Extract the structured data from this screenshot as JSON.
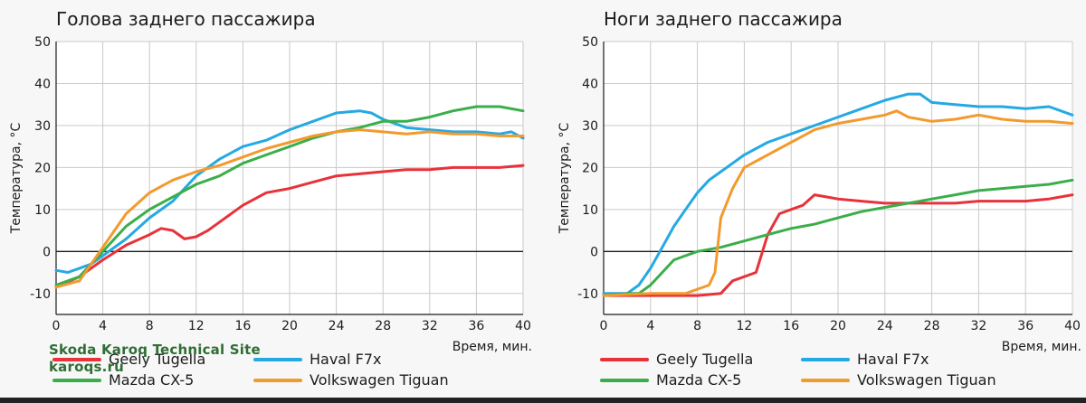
{
  "watermark": {
    "line1": "Skoda Karoq Technical Site",
    "line2": "karoqs.ru"
  },
  "chart_data": [
    {
      "type": "line",
      "title": "Голова заднего пассажира",
      "xlabel": "Время, мин.",
      "ylabel": "Температура, °C",
      "xlim": [
        0,
        40
      ],
      "ylim": [
        -15,
        50
      ],
      "xticks": [
        0,
        4,
        8,
        12,
        16,
        20,
        24,
        28,
        32,
        36,
        40
      ],
      "yticks": [
        -10,
        0,
        10,
        20,
        30,
        40,
        50
      ],
      "grid": true,
      "legend_position": "bottom",
      "series": [
        {
          "name": "Geely Tugella",
          "color": "#e8323a",
          "x": [
            0,
            2,
            4,
            6,
            8,
            9,
            10,
            11,
            12,
            13,
            14,
            16,
            18,
            20,
            22,
            24,
            26,
            28,
            30,
            32,
            34,
            36,
            38,
            40
          ],
          "y": [
            -8.5,
            -6,
            -2,
            1.5,
            4,
            5.5,
            5,
            3,
            3.5,
            5,
            7,
            11,
            14,
            15,
            16.5,
            18,
            18.5,
            19,
            19.5,
            19.5,
            20,
            20,
            20,
            20.5
          ]
        },
        {
          "name": "Haval F7x",
          "color": "#25a9e3",
          "x": [
            0,
            1,
            2,
            3,
            4,
            6,
            8,
            10,
            12,
            14,
            16,
            18,
            20,
            22,
            24,
            26,
            27,
            28,
            30,
            32,
            34,
            36,
            38,
            39,
            40
          ],
          "y": [
            -4.5,
            -5,
            -4,
            -3,
            -1,
            3,
            8,
            12,
            18,
            22,
            25,
            26.5,
            29,
            31,
            33,
            33.5,
            33,
            31.5,
            29.5,
            29,
            28.5,
            28.5,
            28,
            28.5,
            27
          ]
        },
        {
          "name": "Mazda CX-5",
          "color": "#3aae4a",
          "x": [
            0,
            2,
            4,
            6,
            8,
            10,
            12,
            14,
            16,
            18,
            20,
            22,
            24,
            26,
            28,
            30,
            32,
            34,
            36,
            38,
            40
          ],
          "y": [
            -8,
            -6,
            0,
            6,
            10,
            13,
            16,
            18,
            21,
            23,
            25,
            27,
            28.5,
            29.5,
            31,
            31,
            32,
            33.5,
            34.5,
            34.5,
            33.5
          ]
        },
        {
          "name": "Volkswagen Tiguan",
          "color": "#f29a2e",
          "x": [
            0,
            2,
            3,
            4,
            5,
            6,
            8,
            10,
            12,
            14,
            16,
            18,
            20,
            22,
            24,
            26,
            28,
            30,
            32,
            34,
            36,
            38,
            40
          ],
          "y": [
            -8.5,
            -7,
            -3,
            1,
            5,
            9,
            14,
            17,
            19,
            20.5,
            22.5,
            24.5,
            26,
            27.5,
            28.5,
            29,
            28.5,
            28,
            28.5,
            28,
            28,
            27.5,
            27.5
          ]
        }
      ]
    },
    {
      "type": "line",
      "title": "Ноги заднего пассажира",
      "xlabel": "Время, мин.",
      "ylabel": "Температура, °C",
      "xlim": [
        0,
        40
      ],
      "ylim": [
        -15,
        50
      ],
      "xticks": [
        0,
        4,
        8,
        12,
        16,
        20,
        24,
        28,
        32,
        36,
        40
      ],
      "yticks": [
        -10,
        0,
        10,
        20,
        30,
        40,
        50
      ],
      "grid": true,
      "legend_position": "bottom",
      "series": [
        {
          "name": "Geely Tugella",
          "color": "#e8323a",
          "x": [
            0,
            4,
            8,
            10,
            11,
            12,
            13,
            14,
            15,
            16,
            17,
            18,
            19,
            20,
            22,
            24,
            26,
            28,
            30,
            32,
            34,
            36,
            38,
            40
          ],
          "y": [
            -10.5,
            -10.5,
            -10.5,
            -10,
            -7,
            -6,
            -5,
            4,
            9,
            10,
            11,
            13.5,
            13,
            12.5,
            12,
            11.5,
            11.5,
            11.5,
            11.5,
            12,
            12,
            12,
            12.5,
            13.5
          ]
        },
        {
          "name": "Haval F7x",
          "color": "#25a9e3",
          "x": [
            0,
            2,
            3,
            4,
            5,
            6,
            7,
            8,
            9,
            10,
            11,
            12,
            14,
            16,
            18,
            20,
            22,
            24,
            26,
            27,
            28,
            30,
            32,
            34,
            36,
            38,
            40
          ],
          "y": [
            -10,
            -10,
            -8,
            -4,
            1,
            6,
            10,
            14,
            17,
            19,
            21,
            23,
            26,
            28,
            30,
            32,
            34,
            36,
            37.5,
            37.5,
            35.5,
            35,
            34.5,
            34.5,
            34,
            34.5,
            32.5
          ]
        },
        {
          "name": "Mazda CX-5",
          "color": "#3aae4a",
          "x": [
            0,
            2,
            3,
            4,
            5,
            6,
            8,
            10,
            12,
            14,
            16,
            18,
            20,
            22,
            24,
            26,
            28,
            30,
            32,
            34,
            36,
            38,
            40
          ],
          "y": [
            -10.5,
            -10,
            -10,
            -8,
            -5,
            -2,
            0,
            1,
            2.5,
            4,
            5.5,
            6.5,
            8,
            9.5,
            10.5,
            11.5,
            12.5,
            13.5,
            14.5,
            15,
            15.5,
            16,
            17
          ]
        },
        {
          "name": "Volkswagen Tiguan",
          "color": "#f29a2e",
          "x": [
            0,
            4,
            7,
            8,
            9,
            9.5,
            10,
            11,
            12,
            14,
            16,
            18,
            20,
            22,
            24,
            25,
            26,
            28,
            30,
            32,
            34,
            36,
            38,
            40
          ],
          "y": [
            -10.5,
            -10,
            -10,
            -9,
            -8,
            -5,
            8,
            15,
            20,
            23,
            26,
            29,
            30.5,
            31.5,
            32.5,
            33.5,
            32,
            31,
            31.5,
            32.5,
            31.5,
            31,
            31,
            30.5
          ]
        }
      ]
    }
  ]
}
